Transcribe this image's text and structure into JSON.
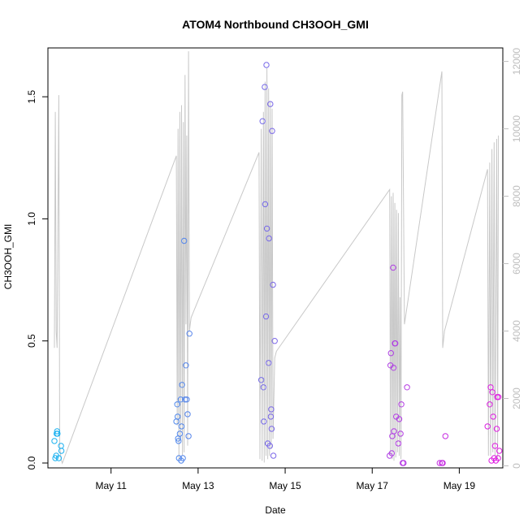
{
  "chart_data": {
    "type": "scatter",
    "title": "ATOM4 Northbound CH3OOH_GMI",
    "xlabel": "Date",
    "ylabel": "CH3OOH_GMI",
    "x_unit": "days in May",
    "xlim": [
      9.55,
      20.0
    ],
    "ylim": [
      -0.02,
      1.7
    ],
    "y2lim": [
      -60,
      12400
    ],
    "x_ticks": [
      {
        "x": 11,
        "label": "May 11"
      },
      {
        "x": 13,
        "label": "May 13"
      },
      {
        "x": 15,
        "label": "May 15"
      },
      {
        "x": 17,
        "label": "May 17"
      },
      {
        "x": 19,
        "label": "May 19"
      }
    ],
    "y_ticks": [
      {
        "y": 0.0,
        "label": "0.0"
      },
      {
        "y": 0.5,
        "label": "0.5"
      },
      {
        "y": 1.0,
        "label": "1.0"
      },
      {
        "y": 1.5,
        "label": "1.5"
      }
    ],
    "y2_ticks": [
      {
        "y": 0,
        "label": "0"
      },
      {
        "y": 2000,
        "label": "2000"
      },
      {
        "y": 4000,
        "label": "4000"
      },
      {
        "y": 6000,
        "label": "6000"
      },
      {
        "y": 8000,
        "label": "8000"
      },
      {
        "y": 10000,
        "label": "10000"
      },
      {
        "y": 12000,
        "label": "12000"
      }
    ],
    "colors": {
      "altitude_line": "#c8c8c8",
      "color_start": "#1ab2f0",
      "color_end": "#e01ae0",
      "axis": "#000000",
      "right_axis": "#bebebe"
    },
    "series": [
      {
        "points": [
          [
            9.7,
            0.09
          ],
          [
            9.72,
            0.02
          ],
          [
            9.74,
            0.03
          ],
          [
            9.75,
            0.12
          ],
          [
            9.76,
            0.13
          ],
          [
            9.77,
            0.12
          ],
          [
            9.8,
            0.02
          ],
          [
            9.85,
            0.07
          ],
          [
            9.86,
            0.05
          ],
          [
            12.5,
            0.17
          ],
          [
            12.52,
            0.24
          ],
          [
            12.53,
            0.19
          ],
          [
            12.54,
            0.1
          ],
          [
            12.55,
            0.09
          ],
          [
            12.56,
            0.02
          ],
          [
            12.58,
            0.12
          ],
          [
            12.6,
            0.26
          ],
          [
            12.61,
            0.01
          ],
          [
            12.62,
            0.15
          ],
          [
            12.63,
            0.32
          ],
          [
            12.65,
            0.02
          ],
          [
            12.68,
            0.91
          ],
          [
            12.7,
            0.26
          ],
          [
            12.72,
            0.4
          ],
          [
            12.74,
            0.26
          ],
          [
            12.76,
            0.2
          ],
          [
            12.78,
            0.11
          ],
          [
            12.8,
            0.53
          ],
          [
            14.45,
            0.34
          ],
          [
            14.48,
            1.4
          ],
          [
            14.5,
            0.31
          ],
          [
            14.51,
            0.17
          ],
          [
            14.53,
            1.54
          ],
          [
            14.54,
            1.06
          ],
          [
            14.56,
            0.6
          ],
          [
            14.57,
            1.63
          ],
          [
            14.58,
            0.96
          ],
          [
            14.6,
            0.08
          ],
          [
            14.62,
            0.41
          ],
          [
            14.63,
            0.92
          ],
          [
            14.65,
            0.07
          ],
          [
            14.66,
            1.47
          ],
          [
            14.67,
            0.19
          ],
          [
            14.68,
            0.22
          ],
          [
            14.69,
            0.14
          ],
          [
            14.7,
            1.36
          ],
          [
            14.72,
            0.73
          ],
          [
            14.73,
            0.03
          ],
          [
            14.76,
            0.5
          ],
          [
            17.4,
            0.03
          ],
          [
            17.42,
            0.4
          ],
          [
            17.43,
            0.45
          ],
          [
            17.45,
            0.04
          ],
          [
            17.46,
            0.11
          ],
          [
            17.48,
            0.8
          ],
          [
            17.49,
            0.39
          ],
          [
            17.5,
            0.13
          ],
          [
            17.52,
            0.49
          ],
          [
            17.53,
            0.49
          ],
          [
            17.55,
            0.19
          ],
          [
            17.6,
            0.08
          ],
          [
            17.62,
            0.18
          ],
          [
            17.65,
            0.12
          ],
          [
            17.67,
            0.24
          ],
          [
            17.7,
            0.0
          ],
          [
            17.72,
            0.0
          ],
          [
            17.8,
            0.31
          ],
          [
            18.55,
            0.0
          ],
          [
            18.6,
            0.0
          ],
          [
            18.62,
            0.0
          ],
          [
            18.68,
            0.11
          ],
          [
            19.65,
            0.15
          ],
          [
            19.7,
            0.24
          ],
          [
            19.72,
            0.31
          ],
          [
            19.74,
            0.01
          ],
          [
            19.76,
            0.29
          ],
          [
            19.78,
            0.19
          ],
          [
            19.8,
            0.02
          ],
          [
            19.82,
            0.07
          ],
          [
            19.84,
            0.01
          ],
          [
            19.86,
            0.14
          ],
          [
            19.87,
            0.27
          ],
          [
            19.89,
            0.02
          ],
          [
            19.9,
            0.27
          ],
          [
            19.92,
            0.05
          ]
        ]
      },
      {
        "role": "altitude_right_axis",
        "points": [
          [
            9.7,
            3500
          ],
          [
            9.72,
            10500
          ],
          [
            9.74,
            4000
          ],
          [
            9.76,
            3500
          ],
          [
            9.8,
            11000
          ],
          [
            9.82,
            600
          ],
          [
            9.85,
            200
          ],
          [
            9.88,
            80
          ],
          [
            12.5,
            9200
          ],
          [
            12.52,
            1200
          ],
          [
            12.54,
            10000
          ],
          [
            12.56,
            200
          ],
          [
            12.58,
            10500
          ],
          [
            12.6,
            800
          ],
          [
            12.62,
            10700
          ],
          [
            12.64,
            300
          ],
          [
            12.66,
            10200
          ],
          [
            12.68,
            400
          ],
          [
            12.7,
            11600
          ],
          [
            12.72,
            4200
          ],
          [
            12.74,
            9800
          ],
          [
            12.76,
            600
          ],
          [
            12.78,
            12300
          ],
          [
            12.8,
            4000
          ],
          [
            12.82,
            4200
          ],
          [
            12.84,
            4400
          ],
          [
            14.4,
            9300
          ],
          [
            14.42,
            200
          ],
          [
            14.45,
            10000
          ],
          [
            14.47,
            150
          ],
          [
            14.5,
            10500
          ],
          [
            14.52,
            100
          ],
          [
            14.54,
            11400
          ],
          [
            14.56,
            300
          ],
          [
            14.58,
            11800
          ],
          [
            14.6,
            200
          ],
          [
            14.62,
            11200
          ],
          [
            14.64,
            300
          ],
          [
            14.66,
            10800
          ],
          [
            14.68,
            500
          ],
          [
            14.7,
            10600
          ],
          [
            14.72,
            800
          ],
          [
            14.76,
            3200
          ],
          [
            14.8,
            3400
          ],
          [
            17.4,
            8200
          ],
          [
            17.42,
            300
          ],
          [
            17.44,
            8000
          ],
          [
            17.46,
            200
          ],
          [
            17.48,
            8100
          ],
          [
            17.5,
            150
          ],
          [
            17.52,
            7800
          ],
          [
            17.54,
            250
          ],
          [
            17.56,
            7600
          ],
          [
            17.58,
            400
          ],
          [
            17.6,
            7500
          ],
          [
            17.62,
            300
          ],
          [
            17.64,
            5000
          ],
          [
            17.66,
            200
          ],
          [
            17.68,
            11000
          ],
          [
            17.7,
            11100
          ],
          [
            17.74,
            4200
          ],
          [
            18.6,
            11700
          ],
          [
            18.62,
            3500
          ],
          [
            18.66,
            4000
          ],
          [
            19.65,
            8800
          ],
          [
            19.67,
            300
          ],
          [
            19.7,
            9000
          ],
          [
            19.72,
            300
          ],
          [
            19.75,
            9400
          ],
          [
            19.77,
            400
          ],
          [
            19.8,
            9600
          ],
          [
            19.82,
            300
          ],
          [
            19.86,
            9700
          ],
          [
            19.88,
            200
          ],
          [
            19.9,
            9800
          ]
        ]
      }
    ]
  }
}
